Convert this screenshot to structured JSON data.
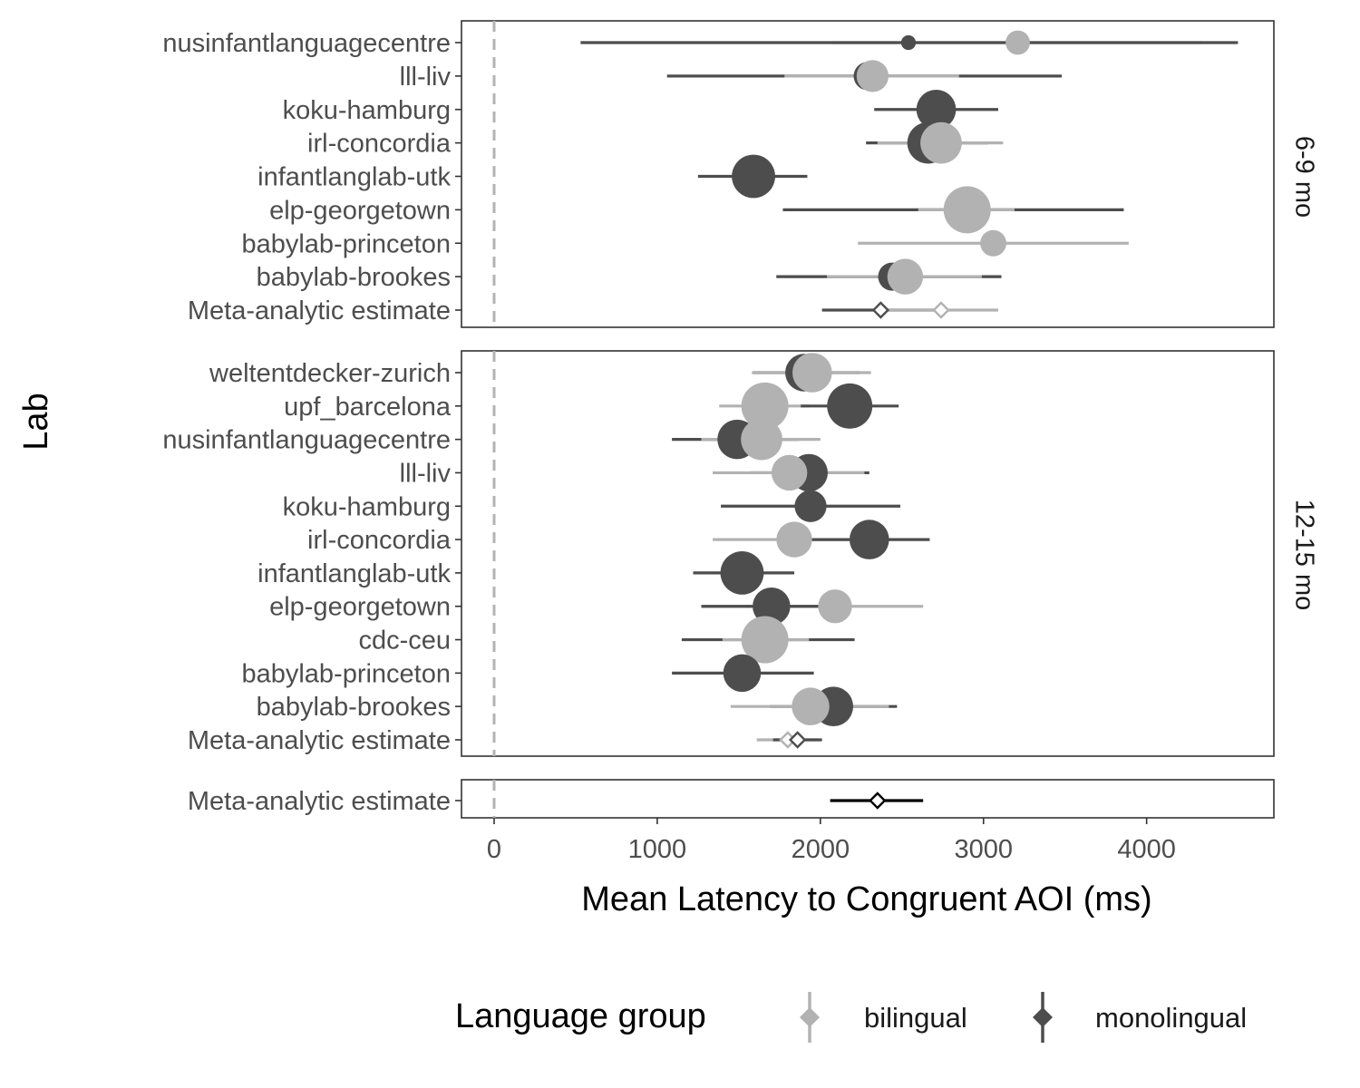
{
  "chart_data": {
    "type": "forest",
    "xlabel": "Mean Latency to Congruent AOI (ms)",
    "ylabel": "Lab",
    "xlim": [
      -200,
      4780
    ],
    "x_ticks": [
      "0",
      "1000",
      "2000",
      "3000",
      "4000"
    ],
    "reference_line_x": 0,
    "grid": false,
    "legend": {
      "title": "Language group",
      "position": "bottom",
      "items": [
        {
          "name": "bilingual",
          "color": "#b2b2b2"
        },
        {
          "name": "monolingual",
          "color": "#4d4d4d"
        }
      ]
    },
    "point_size_encodes": "lab sample size (no size legend shown)",
    "panels": [
      {
        "strip_label": "6-9 mo",
        "labs": [
          "nusinfantlanguagecentre",
          "lll-liv",
          "koku-hamburg",
          "irl-concordia",
          "infantlanglab-utk",
          "elp-georgetown",
          "babylab-princeton",
          "babylab-brookes",
          "Meta-analytic estimate"
        ],
        "estimates": [
          {
            "lab": "nusinfantlanguagecentre",
            "group": "bilingual",
            "mean": 3210,
            "lo": 2070,
            "hi": 4340,
            "size": 0.4
          },
          {
            "lab": "nusinfantlanguagecentre",
            "group": "monolingual",
            "mean": 2540,
            "lo": 530,
            "hi": 4560,
            "size": 0.15
          },
          {
            "lab": "lll-liv",
            "group": "monolingual",
            "mean": 2290,
            "lo": 1060,
            "hi": 3480,
            "size": 0.5
          },
          {
            "lab": "lll-liv",
            "group": "bilingual",
            "mean": 2320,
            "lo": 1780,
            "hi": 2850,
            "size": 0.6
          },
          {
            "lab": "koku-hamburg",
            "group": "monolingual",
            "mean": 2710,
            "lo": 2330,
            "hi": 3090,
            "size": 0.8
          },
          {
            "lab": "irl-concordia",
            "group": "monolingual",
            "mean": 2660,
            "lo": 2280,
            "hi": 3030,
            "size": 0.85
          },
          {
            "lab": "irl-concordia",
            "group": "bilingual",
            "mean": 2740,
            "lo": 2350,
            "hi": 3120,
            "size": 0.85
          },
          {
            "lab": "infantlanglab-utk",
            "group": "monolingual",
            "mean": 1590,
            "lo": 1250,
            "hi": 1920,
            "size": 0.9
          },
          {
            "lab": "elp-georgetown",
            "group": "monolingual",
            "mean": 2820,
            "lo": 1770,
            "hi": 3860,
            "size": 0.3
          },
          {
            "lab": "elp-georgetown",
            "group": "bilingual",
            "mean": 2900,
            "lo": 2600,
            "hi": 3190,
            "size": 1.0
          },
          {
            "lab": "babylab-princeton",
            "group": "bilingual",
            "mean": 3060,
            "lo": 2230,
            "hi": 3890,
            "size": 0.45
          },
          {
            "lab": "babylab-brookes",
            "group": "monolingual",
            "mean": 2440,
            "lo": 1730,
            "hi": 3110,
            "size": 0.5
          },
          {
            "lab": "babylab-brookes",
            "group": "bilingual",
            "mean": 2520,
            "lo": 2040,
            "hi": 2990,
            "size": 0.7
          },
          {
            "lab": "Meta-analytic estimate",
            "group": "monolingual",
            "mean": 2370,
            "lo": 2010,
            "hi": 2730,
            "meta": true
          },
          {
            "lab": "Meta-analytic estimate",
            "group": "bilingual",
            "mean": 2740,
            "lo": 2370,
            "hi": 3090,
            "meta": true
          }
        ]
      },
      {
        "strip_label": "12-15 mo",
        "labs": [
          "weltentdecker-zurich",
          "upf_barcelona",
          "nusinfantlanguagecentre",
          "lll-liv",
          "koku-hamburg",
          "irl-concordia",
          "infantlanglab-utk",
          "elp-georgetown",
          "cdc-ceu",
          "babylab-princeton",
          "babylab-brookes",
          "Meta-analytic estimate"
        ],
        "estimates": [
          {
            "lab": "weltentdecker-zurich",
            "group": "monolingual",
            "mean": 1900,
            "lo": 1590,
            "hi": 2240,
            "size": 0.75
          },
          {
            "lab": "weltentdecker-zurich",
            "group": "bilingual",
            "mean": 1950,
            "lo": 1580,
            "hi": 2310,
            "size": 0.8
          },
          {
            "lab": "upf_barcelona",
            "group": "bilingual",
            "mean": 1660,
            "lo": 1380,
            "hi": 1930,
            "size": 1.0
          },
          {
            "lab": "upf_barcelona",
            "group": "monolingual",
            "mean": 2180,
            "lo": 1880,
            "hi": 2480,
            "size": 0.95
          },
          {
            "lab": "nusinfantlanguagecentre",
            "group": "monolingual",
            "mean": 1490,
            "lo": 1090,
            "hi": 1870,
            "size": 0.8
          },
          {
            "lab": "nusinfantlanguagecentre",
            "group": "bilingual",
            "mean": 1640,
            "lo": 1270,
            "hi": 2000,
            "size": 0.85
          },
          {
            "lab": "lll-liv",
            "group": "monolingual",
            "mean": 1930,
            "lo": 1570,
            "hi": 2300,
            "size": 0.75
          },
          {
            "lab": "lll-liv",
            "group": "bilingual",
            "mean": 1810,
            "lo": 1340,
            "hi": 2270,
            "size": 0.7
          },
          {
            "lab": "koku-hamburg",
            "group": "monolingual",
            "mean": 1940,
            "lo": 1390,
            "hi": 2490,
            "size": 0.6
          },
          {
            "lab": "irl-concordia",
            "group": "bilingual",
            "mean": 1840,
            "lo": 1340,
            "hi": 2350,
            "size": 0.7
          },
          {
            "lab": "irl-concordia",
            "group": "monolingual",
            "mean": 2300,
            "lo": 1930,
            "hi": 2670,
            "size": 0.8
          },
          {
            "lab": "infantlanglab-utk",
            "group": "monolingual",
            "mean": 1520,
            "lo": 1220,
            "hi": 1840,
            "size": 0.9
          },
          {
            "lab": "elp-georgetown",
            "group": "bilingual",
            "mean": 2090,
            "lo": 1540,
            "hi": 2630,
            "size": 0.65
          },
          {
            "lab": "elp-georgetown",
            "group": "monolingual",
            "mean": 1700,
            "lo": 1270,
            "hi": 2160,
            "size": 0.75
          },
          {
            "lab": "cdc-ceu",
            "group": "monolingual",
            "mean": 1660,
            "lo": 1150,
            "hi": 2210,
            "size": 0.6
          },
          {
            "lab": "cdc-ceu",
            "group": "bilingual",
            "mean": 1660,
            "lo": 1400,
            "hi": 1930,
            "size": 1.0
          },
          {
            "lab": "babylab-princeton",
            "group": "monolingual",
            "mean": 1520,
            "lo": 1090,
            "hi": 1960,
            "size": 0.75
          },
          {
            "lab": "babylab-brookes",
            "group": "monolingual",
            "mean": 2080,
            "lo": 1690,
            "hi": 2470,
            "size": 0.8
          },
          {
            "lab": "babylab-brookes",
            "group": "bilingual",
            "mean": 1940,
            "lo": 1450,
            "hi": 2420,
            "size": 0.75
          },
          {
            "lab": "Meta-analytic estimate",
            "group": "bilingual",
            "mean": 1800,
            "lo": 1610,
            "hi": 1980,
            "meta": true
          },
          {
            "lab": "Meta-analytic estimate",
            "group": "monolingual",
            "mean": 1860,
            "lo": 1710,
            "hi": 2010,
            "meta": true
          }
        ]
      },
      {
        "strip_label": "",
        "labs": [
          "Meta-analytic estimate"
        ],
        "estimates": [
          {
            "lab": "Meta-analytic estimate",
            "group": "overall",
            "mean": 2350,
            "lo": 2060,
            "hi": 2630,
            "meta": true
          }
        ]
      }
    ]
  }
}
